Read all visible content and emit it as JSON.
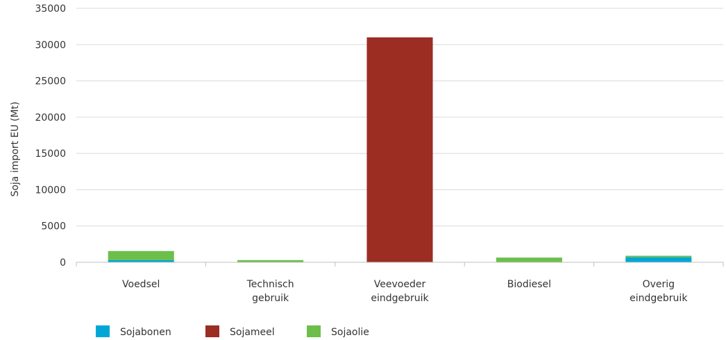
{
  "chart_data": {
    "type": "bar",
    "stacked": true,
    "categories": [
      [
        "Voedsel"
      ],
      [
        "Technisch",
        "gebruik"
      ],
      [
        "Veevoeder",
        "eindgebruik"
      ],
      [
        "Biodiesel"
      ],
      [
        "Overig",
        "eindgebruik"
      ]
    ],
    "series": [
      {
        "name": "Sojabonen",
        "color": "#00a7d6",
        "values": [
          300,
          0,
          0,
          0,
          700
        ]
      },
      {
        "name": "Sojameel",
        "color": "#9b2d23",
        "values": [
          0,
          0,
          31000,
          0,
          0
        ]
      },
      {
        "name": "Sojaolie",
        "color": "#6cbf4b",
        "values": [
          1250,
          300,
          0,
          650,
          200
        ]
      }
    ],
    "title": "",
    "xlabel": "",
    "ylabel": "Soja import EU (Mt)",
    "ylim": [
      0,
      35000
    ],
    "yticks": [
      0,
      5000,
      10000,
      15000,
      20000,
      25000,
      30000,
      35000
    ],
    "grid": true,
    "legend": "bottom-left"
  }
}
